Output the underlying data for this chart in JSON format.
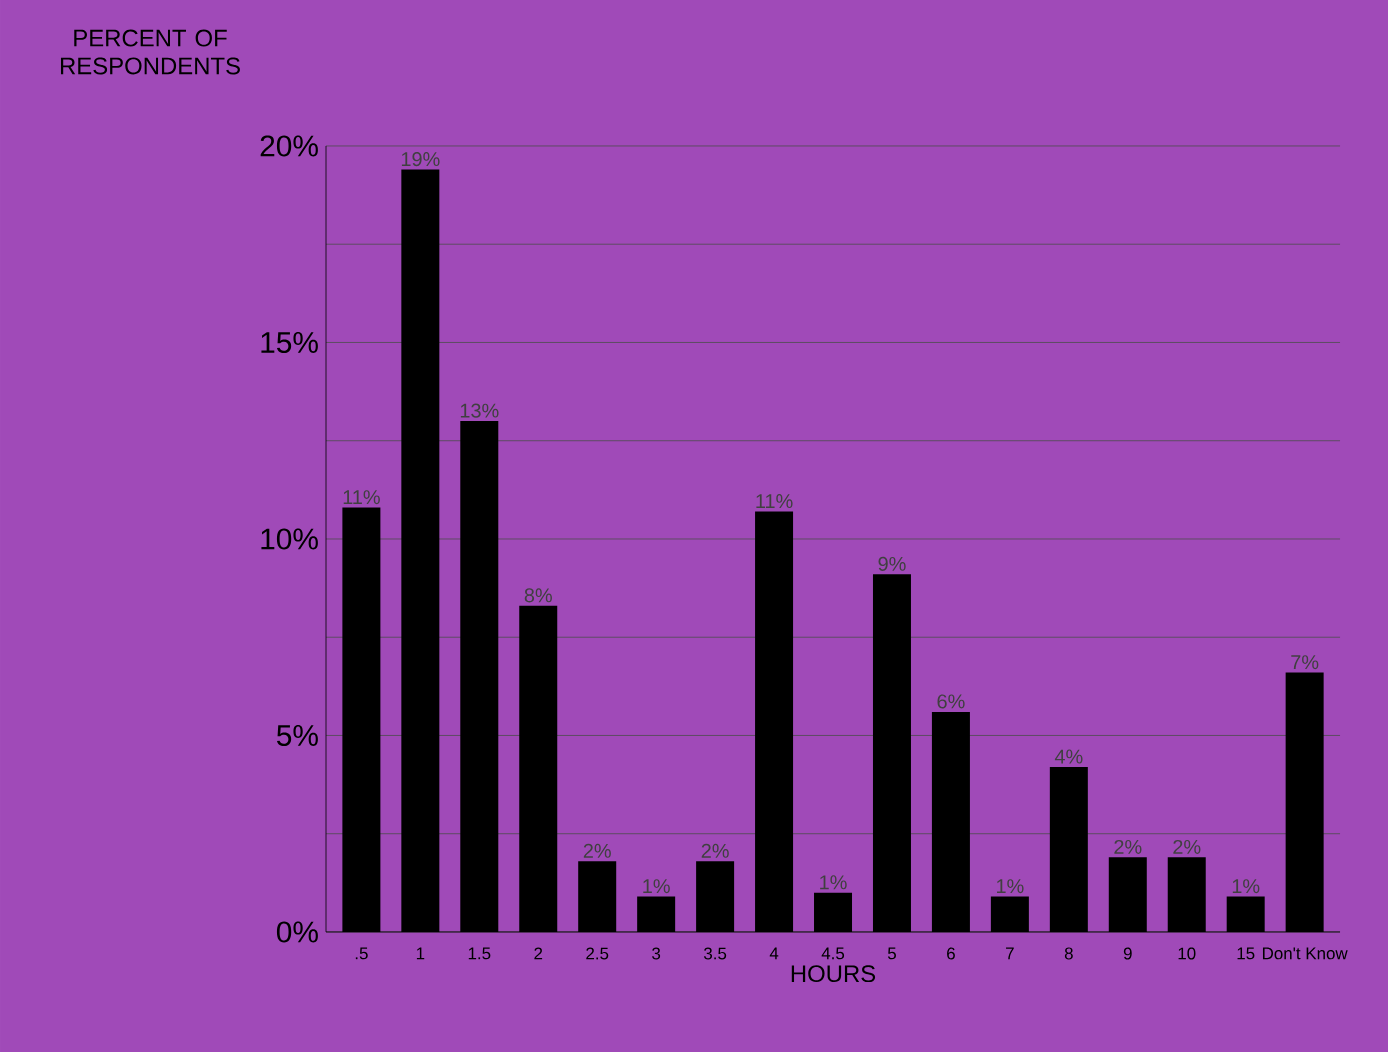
{
  "chart_data": {
    "type": "bar",
    "ylabel": "PERCENT OF RESPONDENTS",
    "xlabel": "HOURS",
    "categories": [
      ".5",
      "1",
      "1.5",
      "2",
      "2.5",
      "3",
      "3.5",
      "4",
      "4.5",
      "5",
      "6",
      "7",
      "8",
      "9",
      "10",
      "15",
      "Don't Know"
    ],
    "values": [
      10.8,
      19.4,
      13.0,
      8.3,
      1.8,
      0.9,
      1.8,
      10.7,
      1.0,
      9.1,
      5.6,
      0.9,
      4.2,
      1.9,
      1.9,
      0.9,
      6.6
    ],
    "value_labels": [
      "11%",
      "19%",
      "13%",
      "8%",
      "2%",
      "1%",
      "2%",
      "11%",
      "1%",
      "9%",
      "6%",
      "1%",
      "4%",
      "2%",
      "2%",
      "1%",
      "7%"
    ],
    "color": "#000000",
    "ylim": [
      0,
      20
    ],
    "yticks": [
      {
        "value": 0,
        "label": "0%"
      },
      {
        "value": 2.5,
        "label": null
      },
      {
        "value": 5,
        "label": "5%"
      },
      {
        "value": 7.5,
        "label": null
      },
      {
        "value": 10,
        "label": "10%"
      },
      {
        "value": 12.5,
        "label": null
      },
      {
        "value": 15,
        "label": "15%"
      },
      {
        "value": 17.5,
        "label": null
      },
      {
        "value": 20,
        "label": "20%"
      }
    ],
    "grid": "y"
  }
}
